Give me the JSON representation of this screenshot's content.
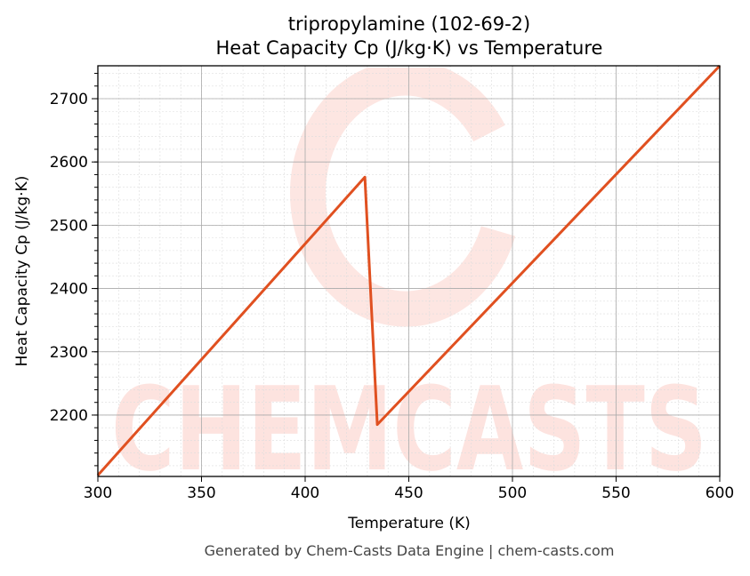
{
  "chart_data": {
    "type": "line",
    "title": "tripropylamine (102-69-2)",
    "subtitle": "Heat Capacity Cp (J/kg·K) vs Temperature",
    "xlabel": "Temperature (K)",
    "ylabel": "Heat Capacity Cp (J/kg·K)",
    "xlim": [
      300,
      600
    ],
    "ylim": [
      2103,
      2752
    ],
    "xticks": [
      300,
      350,
      400,
      450,
      500,
      550,
      600
    ],
    "yticks": [
      2200,
      2300,
      2400,
      2500,
      2600,
      2700
    ],
    "grid": true,
    "line_color": "#e05020",
    "series": [
      {
        "x": [
          300,
          428.8,
          434.8,
          600
        ],
        "y": [
          2105,
          2576,
          2185,
          2752
        ]
      }
    ],
    "footer": "Generated by Chem-Casts Data Engine | chem-casts.com",
    "watermark": "CHEMCASTS"
  }
}
